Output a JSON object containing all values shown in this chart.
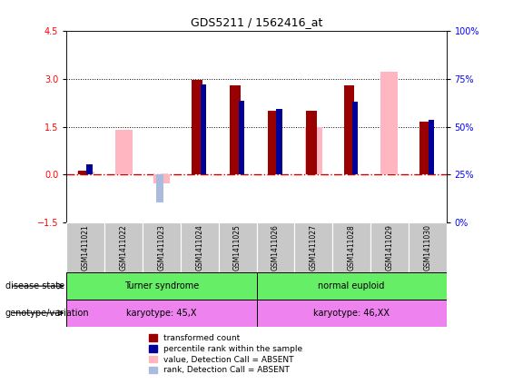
{
  "title": "GDS5211 / 1562416_at",
  "samples": [
    "GSM1411021",
    "GSM1411022",
    "GSM1411023",
    "GSM1411024",
    "GSM1411025",
    "GSM1411026",
    "GSM1411027",
    "GSM1411028",
    "GSM1411029",
    "GSM1411030"
  ],
  "transformed_count": [
    0.12,
    null,
    null,
    2.95,
    2.78,
    2.0,
    2.0,
    2.78,
    null,
    1.65
  ],
  "percentile_rank": [
    0.32,
    null,
    null,
    2.82,
    2.32,
    2.05,
    null,
    2.28,
    null,
    1.72
  ],
  "value_absent": [
    0.1,
    1.4,
    -0.28,
    null,
    null,
    null,
    1.48,
    null,
    3.22,
    null
  ],
  "rank_absent": [
    null,
    null,
    -0.88,
    null,
    null,
    null,
    null,
    null,
    null,
    null
  ],
  "ylim_left": [
    -1.5,
    4.5
  ],
  "ylim_right": [
    0,
    100
  ],
  "yticks_left": [
    -1.5,
    0.0,
    1.5,
    3.0,
    4.5
  ],
  "yticks_right": [
    0,
    25,
    50,
    75,
    100
  ],
  "disease_state_groups": [
    {
      "label": "Turner syndrome",
      "start": 0,
      "end": 5,
      "color": "#66EE66"
    },
    {
      "label": "normal euploid",
      "start": 5,
      "end": 10,
      "color": "#66EE66"
    }
  ],
  "genotype_groups": [
    {
      "label": "karyotype: 45,X",
      "start": 0,
      "end": 5,
      "color": "#EE82EE"
    },
    {
      "label": "karyotype: 46,XX",
      "start": 5,
      "end": 10,
      "color": "#EE82EE"
    }
  ],
  "colors": {
    "transformed_count": "#990000",
    "percentile_rank": "#000099",
    "value_absent": "#FFB6C1",
    "rank_absent": "#AABBDD",
    "hline_zero": "#CC0000",
    "hline_dotted": "#000000"
  },
  "legend_items": [
    {
      "label": "transformed count",
      "color": "#990000",
      "marker": "s"
    },
    {
      "label": "percentile rank within the sample",
      "color": "#000099",
      "marker": "s"
    },
    {
      "label": "value, Detection Call = ABSENT",
      "color": "#FFB6C1",
      "marker": "s"
    },
    {
      "label": "rank, Detection Call = ABSENT",
      "color": "#AABBDD",
      "marker": "s"
    }
  ],
  "row_labels": [
    "disease state",
    "genotype/variation"
  ]
}
